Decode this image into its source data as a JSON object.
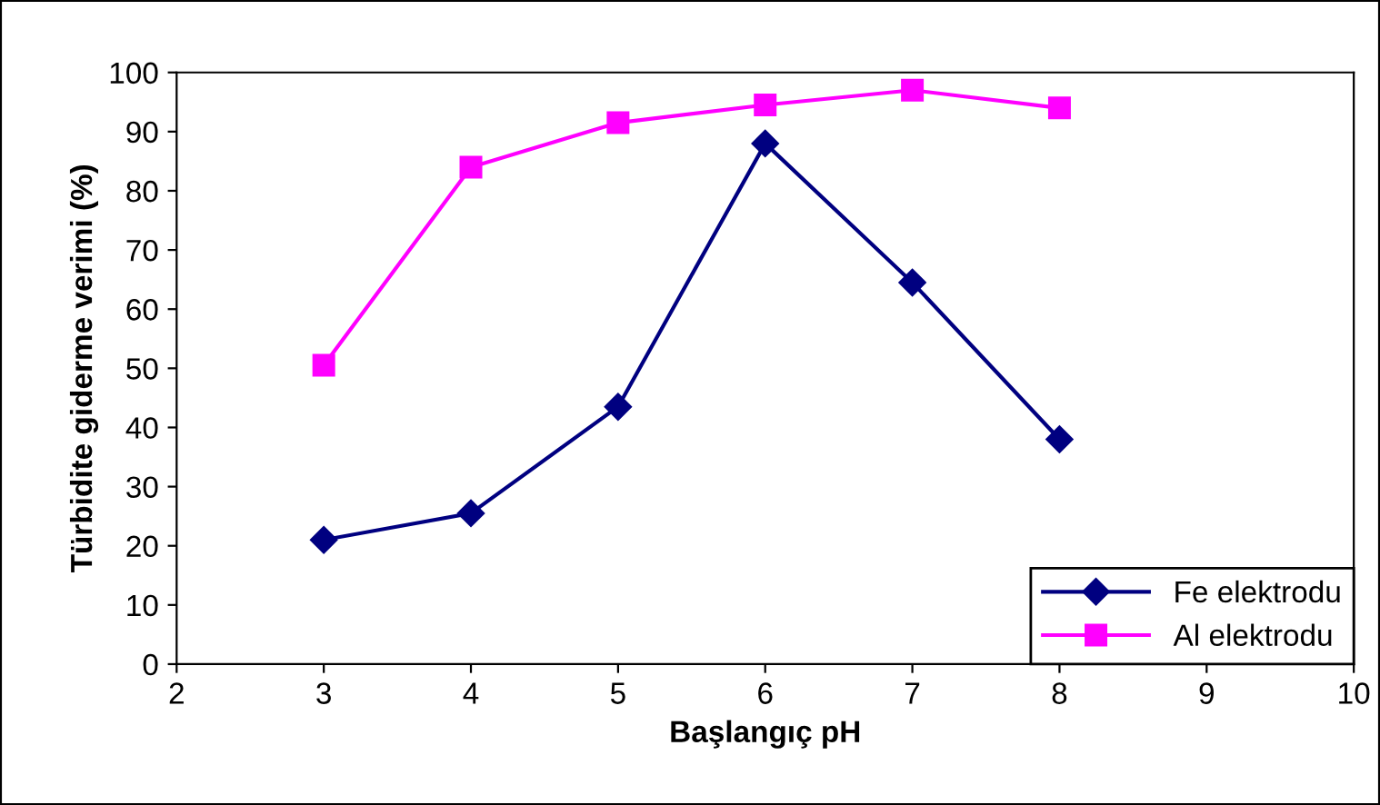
{
  "chart_data": {
    "type": "line",
    "xlabel": "Başlangıç pH",
    "ylabel": "Türbidite giderme verimi (%)",
    "xlim": [
      2,
      10
    ],
    "xticks": [
      2,
      3,
      4,
      5,
      6,
      7,
      8,
      9,
      10
    ],
    "ylim": [
      0,
      100
    ],
    "yticks": [
      0,
      10,
      20,
      30,
      40,
      50,
      60,
      70,
      80,
      90,
      100
    ],
    "grid": false,
    "legend": "bottom right",
    "series": [
      {
        "name": "Fe elektrodu",
        "color": "#000080",
        "marker": "diamond",
        "x": [
          3,
          4,
          5,
          6,
          7,
          8
        ],
        "values": [
          21,
          25.5,
          43.5,
          88,
          64.5,
          38
        ]
      },
      {
        "name": "Al elektrodu",
        "color": "#ff00ff",
        "marker": "square",
        "x": [
          3,
          4,
          5,
          6,
          7,
          8
        ],
        "values": [
          50.5,
          84,
          91.5,
          94.5,
          97,
          94
        ]
      }
    ]
  }
}
